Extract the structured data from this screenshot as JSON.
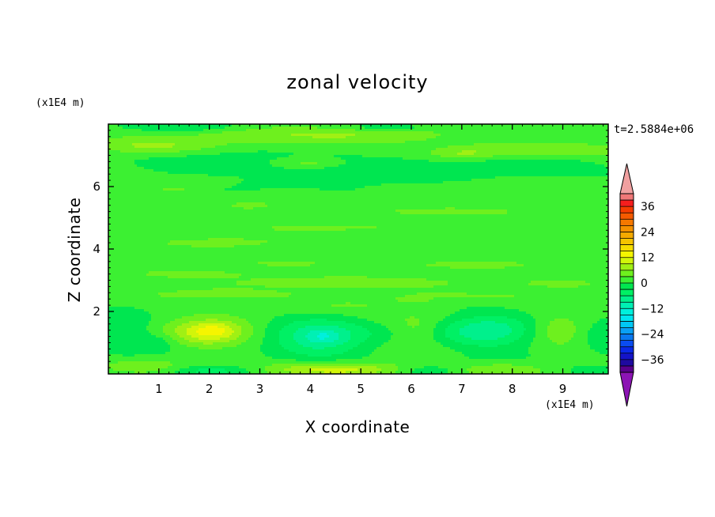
{
  "chart_data": {
    "type": "heatmap",
    "title": "zonal velocity",
    "xlabel": "X coordinate",
    "ylabel": "Z coordinate",
    "x_unit": "(x1E4 m)",
    "y_unit": "(x1E4 m)",
    "time_label": "t=2.5884e+06",
    "xlim": [
      0,
      9.9
    ],
    "ylim": [
      0,
      8
    ],
    "x_ticks": [
      1,
      2,
      3,
      4,
      5,
      6,
      7,
      8,
      9
    ],
    "y_ticks": [
      2,
      4,
      6
    ],
    "colorbar": {
      "levels": [
        -42,
        -39,
        -36,
        -33,
        -30,
        -27,
        -24,
        -21,
        -18,
        -15,
        -12,
        -9,
        -6,
        -3,
        0,
        3,
        6,
        9,
        12,
        15,
        18,
        21,
        24,
        27,
        30,
        33,
        36,
        39,
        42
      ],
      "tick_values": [
        -36,
        -24,
        -12,
        0,
        12,
        24,
        36
      ],
      "tick_labels": [
        "−36",
        "−24",
        "−12",
        "0",
        "12",
        "24",
        "36"
      ],
      "colors": [
        "#5a008c",
        "#1e0aa0",
        "#1414c8",
        "#0a28e6",
        "#0a4cf0",
        "#0a78f0",
        "#0aa0f5",
        "#00c8f5",
        "#00e6f0",
        "#00f0dc",
        "#00f0b4",
        "#00f08c",
        "#00f064",
        "#00e650",
        "#3cf032",
        "#6ef01e",
        "#a0f014",
        "#d2f50a",
        "#f5f500",
        "#f5dc00",
        "#f5c300",
        "#f5aa00",
        "#f59100",
        "#f57800",
        "#f55a00",
        "#f53c00",
        "#f51e1e",
        "#f07878"
      ],
      "under_color": "#8c14b4",
      "over_color": "#f0a0a0"
    },
    "features": [
      {
        "x": 2.0,
        "z": 1.35,
        "amp": 10.5,
        "sx": 0.8,
        "sz": 0.45
      },
      {
        "x": 2.1,
        "z": 1.4,
        "amp": 3.0,
        "sx": 0.35,
        "sz": 0.2
      },
      {
        "x": 4.2,
        "z": 1.15,
        "amp": -10.0,
        "sx": 0.95,
        "sz": 0.6
      },
      {
        "x": 4.25,
        "z": 1.2,
        "amp": -4.0,
        "sx": 0.3,
        "sz": 0.2
      },
      {
        "x": 0.3,
        "z": 1.4,
        "amp": -4.5,
        "sx": 0.5,
        "sz": 0.6
      },
      {
        "x": 6.1,
        "z": 1.3,
        "amp": 3.5,
        "sx": 0.45,
        "sz": 0.55
      },
      {
        "x": 7.5,
        "z": 1.35,
        "amp": -9.0,
        "sx": 0.9,
        "sz": 0.6
      },
      {
        "x": 8.9,
        "z": 1.4,
        "amp": 4.5,
        "sx": 0.5,
        "sz": 0.5
      },
      {
        "x": 9.8,
        "z": 1.2,
        "amp": -3.5,
        "sx": 0.4,
        "sz": 0.5
      },
      {
        "x": 1.0,
        "z": 1.05,
        "amp": -3.5,
        "sx": 0.4,
        "sz": 0.3
      },
      {
        "x": 4.5,
        "z": 0.15,
        "amp": 10.0,
        "sx": 1.3,
        "sz": 0.22
      },
      {
        "x": 2.0,
        "z": 0.1,
        "amp": -6.0,
        "sx": 0.8,
        "sz": 0.18
      },
      {
        "x": 7.7,
        "z": 0.15,
        "amp": 5.0,
        "sx": 0.9,
        "sz": 0.22
      },
      {
        "x": 0.8,
        "z": 0.25,
        "amp": 3.5,
        "sx": 0.8,
        "sz": 0.22
      },
      {
        "x": 6.3,
        "z": 0.1,
        "amp": -3.5,
        "sx": 0.6,
        "sz": 0.15
      },
      {
        "x": 9.6,
        "z": 0.1,
        "amp": -3.0,
        "sx": 0.5,
        "sz": 0.15
      },
      {
        "x": 4.5,
        "z": 7.65,
        "amp": 5.0,
        "sx": 2.3,
        "sz": 0.28
      },
      {
        "x": 0.8,
        "z": 7.3,
        "amp": 5.0,
        "sx": 1.2,
        "sz": 0.25
      },
      {
        "x": 8.5,
        "z": 7.2,
        "amp": 4.0,
        "sx": 2.0,
        "sz": 0.25
      },
      {
        "x": 7.0,
        "z": 7.05,
        "amp": 3.5,
        "sx": 0.6,
        "sz": 0.15
      },
      {
        "x": 5.5,
        "z": 7.9,
        "amp": -4.0,
        "sx": 1.0,
        "sz": 0.12
      },
      {
        "x": 1.5,
        "z": 7.9,
        "amp": -3.5,
        "sx": 1.0,
        "sz": 0.12
      },
      {
        "x": 2.2,
        "z": 6.6,
        "amp": -3.0,
        "sx": 1.5,
        "sz": 0.35
      },
      {
        "x": 5.5,
        "z": 6.5,
        "amp": -3.2,
        "sx": 1.8,
        "sz": 0.4
      },
      {
        "x": 8.5,
        "z": 6.7,
        "amp": -3.0,
        "sx": 1.2,
        "sz": 0.3
      },
      {
        "x": 4.0,
        "z": 6.75,
        "amp": 3.5,
        "sx": 0.6,
        "sz": 0.13
      },
      {
        "x": 1.3,
        "z": 5.9,
        "amp": 3.2,
        "sx": 0.4,
        "sz": 0.1
      },
      {
        "x": 2.8,
        "z": 5.4,
        "amp": 3.2,
        "sx": 0.35,
        "sz": 0.1
      },
      {
        "x": 7.0,
        "z": 5.2,
        "amp": 3.2,
        "sx": 1.5,
        "sz": 0.15
      },
      {
        "x": 4.5,
        "z": 4.7,
        "amp": 3.1,
        "sx": 2.5,
        "sz": 0.18
      },
      {
        "x": 2.0,
        "z": 4.2,
        "amp": 3.1,
        "sx": 1.2,
        "sz": 0.15
      },
      {
        "x": 7.0,
        "z": 3.5,
        "amp": 3.2,
        "sx": 1.8,
        "sz": 0.18
      },
      {
        "x": 1.5,
        "z": 3.2,
        "amp": 3.1,
        "sx": 1.2,
        "sz": 0.15
      },
      {
        "x": 4.5,
        "z": 2.9,
        "amp": 3.1,
        "sx": 2.5,
        "sz": 0.2
      },
      {
        "x": 2.5,
        "z": 2.55,
        "amp": 3.2,
        "sx": 2.0,
        "sz": 0.2
      },
      {
        "x": 7.0,
        "z": 2.5,
        "amp": 3.1,
        "sx": 2.0,
        "sz": 0.18
      },
      {
        "x": 9.0,
        "z": 2.9,
        "amp": 3.1,
        "sx": 0.9,
        "sz": 0.15
      },
      {
        "x": 4.8,
        "z": 2.2,
        "amp": 3.1,
        "sx": 0.5,
        "sz": 0.1
      },
      {
        "x": 6.0,
        "z": 2.35,
        "amp": 3.1,
        "sx": 0.4,
        "sz": 0.1
      },
      {
        "x": 3.5,
        "z": 3.55,
        "amp": 3.1,
        "sx": 1.0,
        "sz": 0.12
      }
    ]
  }
}
